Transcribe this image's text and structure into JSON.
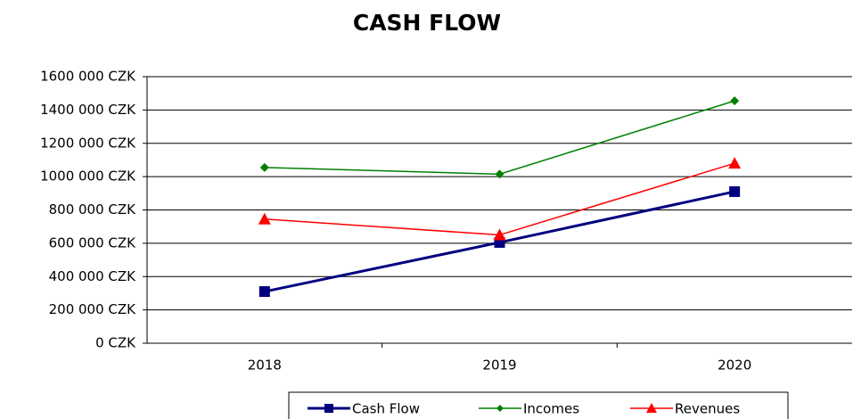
{
  "chart_data": {
    "type": "line",
    "title": "CASH FLOW",
    "categories": [
      "2018",
      "2019",
      "2020"
    ],
    "series": [
      {
        "name": "Cash Flow",
        "color": "#000080",
        "marker": "square",
        "values": [
          310000,
          605000,
          910000
        ]
      },
      {
        "name": "Incomes",
        "color": "#008000",
        "marker": "diamond",
        "values": [
          1055000,
          1015000,
          1455000
        ]
      },
      {
        "name": "Revenues",
        "color": "#ff0000",
        "marker": "triangle",
        "values": [
          745000,
          650000,
          1080000
        ]
      }
    ],
    "ylim": [
      0,
      1600000
    ],
    "yticks": [
      {
        "value": 0,
        "label": "0 CZK"
      },
      {
        "value": 200000,
        "label": "200 000 CZK"
      },
      {
        "value": 400000,
        "label": "400 000 CZK"
      },
      {
        "value": 600000,
        "label": "600 000 CZK"
      },
      {
        "value": 800000,
        "label": "800 000 CZK"
      },
      {
        "value": 1000000,
        "label": "1000 000 CZK"
      },
      {
        "value": 1200000,
        "label": "1200 000 CZK"
      },
      {
        "value": 1400000,
        "label": "1400 000 CZK"
      },
      {
        "value": 1600000,
        "label": "1600 000 CZK"
      }
    ],
    "grid": true,
    "legend": "bottom"
  }
}
